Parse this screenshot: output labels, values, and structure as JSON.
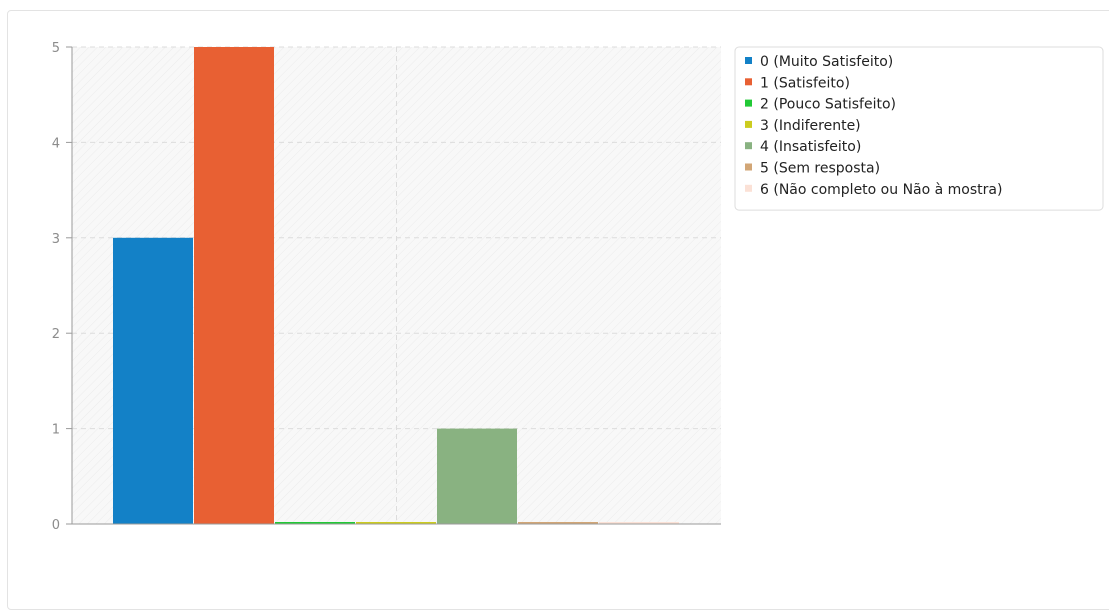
{
  "chart_data": {
    "type": "bar",
    "title": "",
    "xlabel": "",
    "ylabel": "",
    "ylim": [
      0,
      5
    ],
    "yticks": [
      0,
      1,
      2,
      3,
      4,
      5
    ],
    "grid": true,
    "legend_position": "top-right",
    "series": [
      {
        "name": "0 (Muito Satisfeito)",
        "value": 3,
        "color": "#1381c7"
      },
      {
        "name": "1 (Satisfeito)",
        "value": 5,
        "color": "#e86033"
      },
      {
        "name": "2 (Pouco Satisfeito)",
        "value": 0,
        "color": "#21c936"
      },
      {
        "name": "3 (Indiferente)",
        "value": 0,
        "color": "#cccc1f"
      },
      {
        "name": "4 (Insatisfeito)",
        "value": 1,
        "color": "#89b281"
      },
      {
        "name": "5 (Sem resposta)",
        "value": 0,
        "color": "#d2a676"
      },
      {
        "name": "6 (Não completo ou Não à mostra)",
        "value": 0,
        "color": "#fbe1d6"
      }
    ]
  }
}
